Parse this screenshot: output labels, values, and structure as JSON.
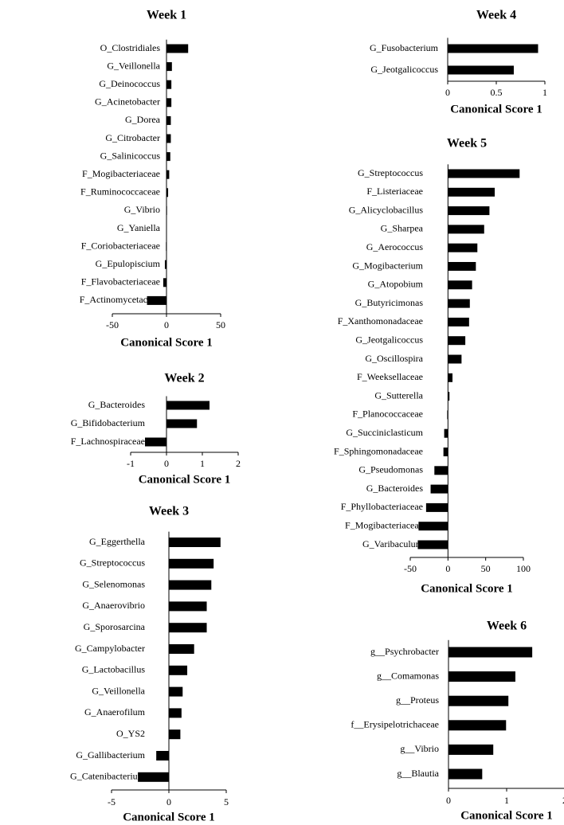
{
  "chart_data": [
    {
      "type": "bar",
      "orientation": "horizontal",
      "title": "Week 1",
      "x_label": "Canonical Score 1",
      "color": "#000000",
      "categories": [
        "O_Clostridiales",
        "G_Veillonella",
        "G_Deinococcus",
        "G_Acinetobacter",
        "G_Dorea",
        "G_Citrobacter",
        "G_Salinicoccus",
        "F_Mogibacteriaceae",
        "F_Ruminococcaceae",
        "G_Vibrio",
        "G_Yaniella",
        "F_Coriobacteriaceae",
        "G_Epulopiscium",
        "F_Flavobacteriaceae",
        "F_Actinomycetaceae"
      ],
      "values": [
        20,
        5,
        4.5,
        4.5,
        4,
        4,
        3.5,
        2.5,
        1.5,
        0.5,
        0.3,
        -0.5,
        -1.5,
        -3,
        -18
      ],
      "xlim": [
        -50,
        50
      ],
      "xticks": [
        -50,
        0,
        50
      ]
    },
    {
      "type": "bar",
      "orientation": "horizontal",
      "title": "Week 2",
      "x_label": "Canonical Score 1",
      "color": "#000000",
      "categories": [
        "G_Bacteroides",
        "G_Bifidobacterium",
        "F_Lachnospiraceae"
      ],
      "values": [
        1.2,
        0.85,
        -0.6
      ],
      "xlim": [
        -1,
        2
      ],
      "xticks": [
        -1,
        0,
        1,
        2
      ]
    },
    {
      "type": "bar",
      "orientation": "horizontal",
      "title": "Week 3",
      "x_label": "Canonical Score 1",
      "color": "#000000",
      "categories": [
        "G_Eggerthella",
        "G_Streptococcus",
        "G_Selenomonas",
        "G_Anaerovibrio",
        "G_Sporosarcina",
        "G_Campylobacter",
        "G_Lactobacillus",
        "G_Veillonella",
        "G_Anaerofilum",
        "O_YS2",
        "G_Gallibacterium",
        "G_Catenibacterium"
      ],
      "values": [
        4.5,
        3.9,
        3.7,
        3.3,
        3.3,
        2.2,
        1.6,
        1.2,
        1.1,
        1.0,
        -1.1,
        -2.7
      ],
      "xlim": [
        -5,
        5
      ],
      "xticks": [
        -5,
        0,
        5
      ]
    },
    {
      "type": "bar",
      "orientation": "horizontal",
      "title": "Week 4",
      "x_label": "Canonical Score 1",
      "color": "#000000",
      "categories": [
        "G_Fusobacterium",
        "G_Jeotgalicoccus"
      ],
      "values": [
        0.93,
        0.68
      ],
      "xlim": [
        0,
        1
      ],
      "xticks": [
        0,
        0.5,
        1
      ]
    },
    {
      "type": "bar",
      "orientation": "horizontal",
      "title": "Week 5",
      "x_label": "Canonical Score 1",
      "color": "#000000",
      "categories": [
        "G_Streptococcus",
        "F_Listeriaceae",
        "G_Alicyclobacillus",
        "G_Sharpea",
        "G_Aerococcus",
        "G_Mogibacterium",
        "G_Atopobium",
        "G_Butyricimonas",
        "F_Xanthomonadaceae",
        "G_Jeotgalicoccus",
        "G_Oscillospira",
        "F_Weeksellaceae",
        "G_Sutterella",
        "F_Planococcaceae",
        "G_Succiniclasticum",
        "F_Sphingomonadaceae",
        "G_Pseudomonas",
        "G_Bacteroides",
        "F_Phyllobacteriaceae",
        "F_Mogibacteriaceae",
        "G_Varibaculum"
      ],
      "values": [
        95,
        62,
        55,
        48,
        39,
        37,
        32,
        29,
        28,
        23,
        18,
        6,
        2,
        -1,
        -5,
        -6,
        -18,
        -23,
        -29,
        -39,
        -40
      ],
      "xlim": [
        -50,
        100
      ],
      "xticks": [
        -50,
        0,
        50,
        100
      ]
    },
    {
      "type": "bar",
      "orientation": "horizontal",
      "title": "Week 6",
      "x_label": "Canonical Score 1",
      "color": "#000000",
      "categories": [
        "g__Psychrobacter",
        "g__Comamonas",
        "g__Proteus",
        "f__Erysipelotrichaceae",
        "g__Vibrio",
        "g__Blautia"
      ],
      "values": [
        1.44,
        1.15,
        1.03,
        0.99,
        0.77,
        0.58
      ],
      "xlim": [
        0,
        2
      ],
      "xticks": [
        0,
        1,
        2
      ]
    }
  ]
}
